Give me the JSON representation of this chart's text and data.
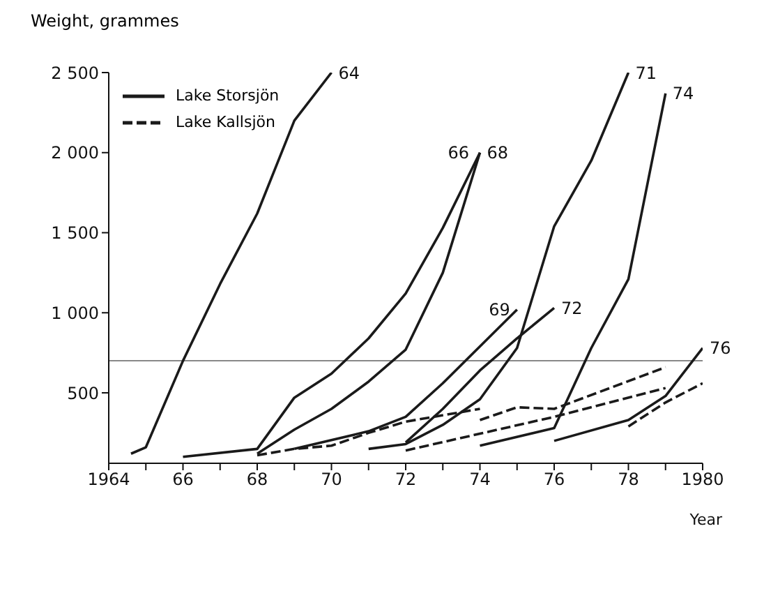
{
  "chart_data": {
    "type": "line",
    "xlabel": "Year",
    "ylabel": "Weight, grammes",
    "xlim": [
      1964,
      1980
    ],
    "ylim": [
      60,
      2500
    ],
    "xticks": [
      1964,
      {
        "value": 1965,
        "label": null
      },
      {
        "value": 1966,
        "label": "66"
      },
      {
        "value": 1967,
        "label": null
      },
      {
        "value": 1968,
        "label": "68"
      },
      {
        "value": 1969,
        "label": null
      },
      {
        "value": 1970,
        "label": "70"
      },
      {
        "value": 1971,
        "label": null
      },
      {
        "value": 1972,
        "label": "72"
      },
      {
        "value": 1973,
        "label": null
      },
      {
        "value": 1974,
        "label": "74"
      },
      {
        "value": 1975,
        "label": null
      },
      {
        "value": 1976,
        "label": "76"
      },
      {
        "value": 1977,
        "label": null
      },
      {
        "value": 1978,
        "label": "78"
      },
      {
        "value": 1979,
        "label": null
      },
      1980
    ],
    "yticks": [
      500,
      {
        "value": 1000,
        "label": "1 000"
      },
      {
        "value": 1500,
        "label": "1 500"
      },
      {
        "value": 2000,
        "label": "2 000"
      },
      {
        "value": 2500,
        "label": "2 500"
      }
    ],
    "legend": "top left",
    "series": [
      {
        "name": "Lake Storsjön",
        "color": "#1a1a1a",
        "line_style": "solid",
        "x": [
          1964.6,
          1965,
          1966,
          1967,
          1968,
          1969,
          1970
        ],
        "values": [
          120,
          160,
          700,
          1180,
          1620,
          2200,
          2500
        ]
      },
      {
        "color": "#1a1a1a",
        "line_style": "solid",
        "x": [
          1966,
          1968,
          1969,
          1970,
          1971,
          1972,
          1973,
          1974
        ],
        "values": [
          100,
          150,
          470,
          620,
          840,
          1120,
          1530,
          2000
        ]
      },
      {
        "color": "#1a1a1a",
        "line_style": "solid",
        "x": [
          1968,
          1969,
          1970,
          1971,
          1972,
          1973,
          1974
        ],
        "values": [
          120,
          270,
          400,
          570,
          770,
          1250,
          2000
        ]
      },
      {
        "color": "#1a1a1a",
        "line_style": "solid",
        "x": [
          1969,
          1971,
          1972,
          1973,
          1974,
          1975
        ],
        "values": [
          150,
          260,
          350,
          560,
          790,
          1020
        ]
      },
      {
        "color": "#1a1a1a",
        "line_style": "solid",
        "x": [
          1971,
          1972,
          1973,
          1974,
          1975,
          1976,
          1977,
          1978
        ],
        "values": [
          150,
          180,
          300,
          460,
          780,
          1540,
          1950,
          2500
        ]
      },
      {
        "color": "#1a1a1a",
        "line_style": "solid",
        "x": [
          1972,
          1973,
          1974,
          1975,
          1976
        ],
        "values": [
          190,
          400,
          640,
          840,
          1030
        ]
      },
      {
        "color": "#1a1a1a",
        "line_style": "solid",
        "x": [
          1974,
          1976,
          1977,
          1978,
          1979
        ],
        "values": [
          170,
          280,
          780,
          1210,
          2370
        ]
      },
      {
        "color": "#1a1a1a",
        "line_style": "solid",
        "x": [
          1976,
          1978,
          1979,
          1980
        ],
        "values": [
          200,
          330,
          480,
          780
        ]
      },
      {
        "name": "Lake Kallsjön",
        "color": "#1a1a1a",
        "line_style": "dashed",
        "x": [
          1968,
          1969,
          1970,
          1971,
          1972,
          1974
        ],
        "values": [
          110,
          150,
          170,
          250,
          320,
          400
        ]
      },
      {
        "color": "#1a1a1a",
        "line_style": "dashed",
        "x": [
          1972,
          1976,
          1979
        ],
        "values": [
          140,
          350,
          530
        ]
      },
      {
        "color": "#1a1a1a",
        "line_style": "dashed",
        "x": [
          1974,
          1975,
          1976,
          1979
        ],
        "values": [
          330,
          410,
          400,
          660
        ]
      },
      {
        "color": "#1a1a1a",
        "line_style": "dashed",
        "x": [
          1978,
          1979,
          1980
        ],
        "values": [
          290,
          440,
          560
        ]
      }
    ],
    "ref_lines": [
      {
        "axis": "y",
        "value": 700,
        "color": "#888888"
      }
    ],
    "annotations": [
      {
        "text": "64",
        "x": 1970,
        "y": 2500
      },
      {
        "text": "66",
        "x": 1973.9,
        "y": 2000
      },
      {
        "text": "68",
        "x": 1974,
        "y": 2000
      },
      {
        "text": "69",
        "x": 1975,
        "y": 1020
      },
      {
        "text": "71",
        "x": 1978,
        "y": 2500
      },
      {
        "text": "72",
        "x": 1976,
        "y": 1030
      },
      {
        "text": "74",
        "x": 1979,
        "y": 2370
      },
      {
        "text": "76",
        "x": 1980,
        "y": 780
      }
    ]
  }
}
